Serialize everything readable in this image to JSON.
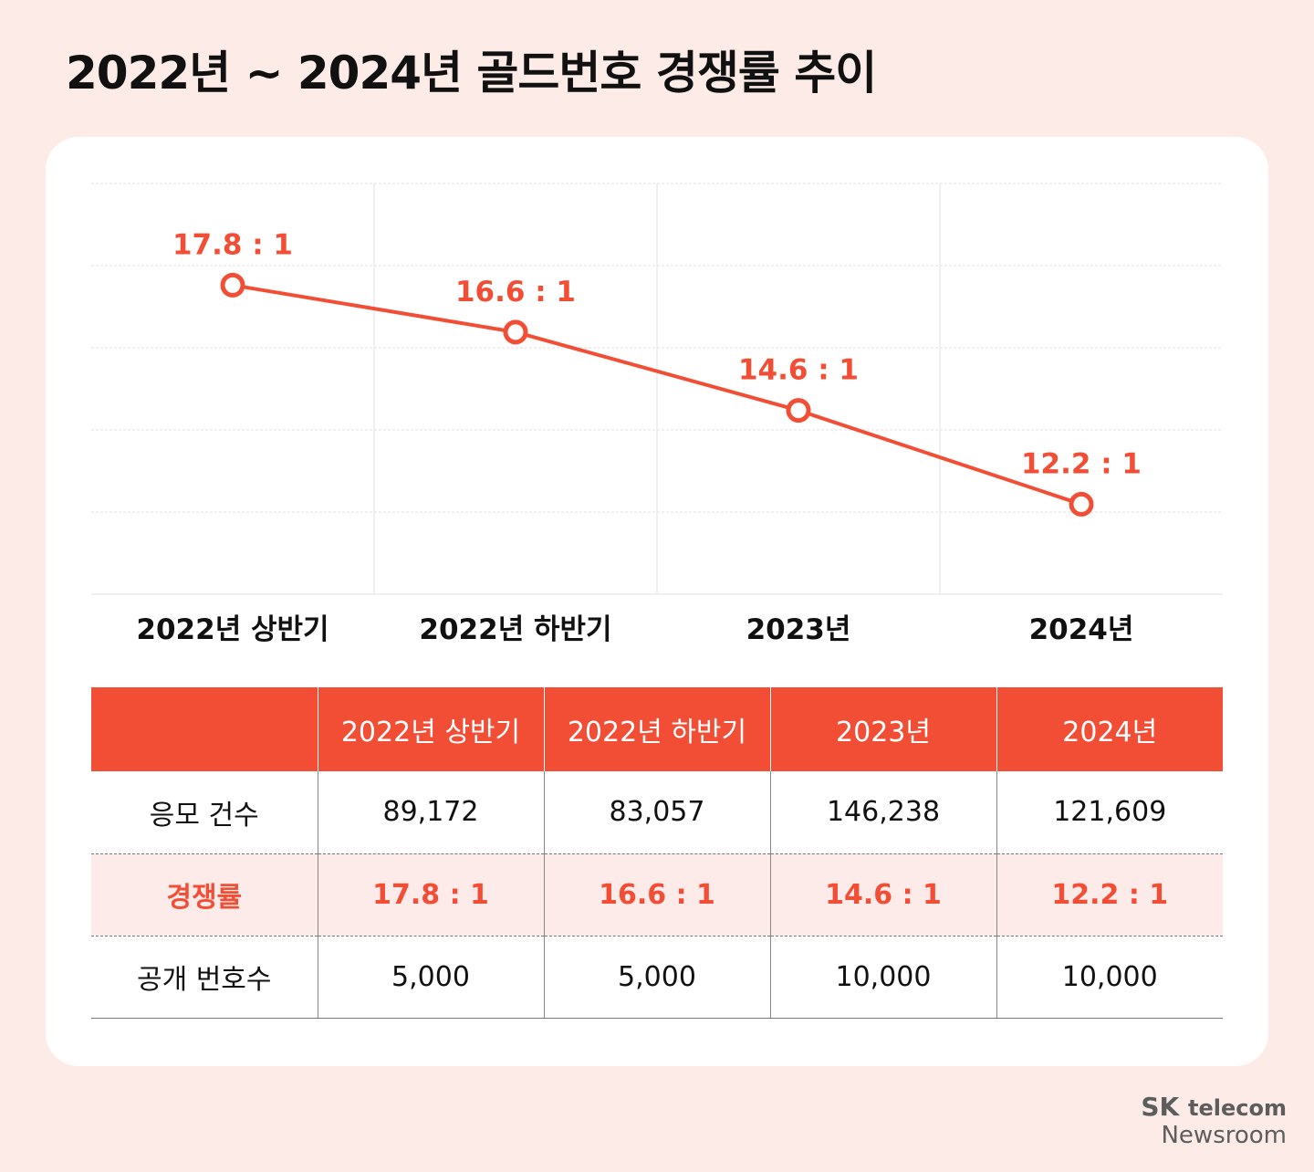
{
  "title": "2022년 ~ 2024년 골드번호 경쟁률 추이",
  "chart_data": {
    "type": "line",
    "title": "2022년 ~ 2024년 골드번호 경쟁률 추이",
    "categories": [
      "2022년 상반기",
      "2022년 하반기",
      "2023년",
      "2024년"
    ],
    "values": [
      17.8,
      16.6,
      14.6,
      12.2
    ],
    "data_labels": [
      "17.8 : 1",
      "16.6 : 1",
      "14.6 : 1",
      "12.2 : 1"
    ],
    "ylim": [
      9.9,
      20.4
    ],
    "grid": true,
    "color": "#f24e36"
  },
  "table": {
    "headers": [
      "",
      "2022년 상반기",
      "2022년 하반기",
      "2023년",
      "2024년"
    ],
    "rows": [
      [
        "응모 건수",
        "89,172",
        "83,057",
        "146,238",
        "121,609"
      ],
      [
        "경쟁률",
        "17.8 : 1",
        "16.6 : 1",
        "14.6 : 1",
        "12.2 : 1"
      ],
      [
        "공개 번호수",
        "5,000",
        "5,000",
        "10,000",
        "10,000"
      ]
    ]
  },
  "logo": {
    "brand": "SK",
    "product": "telecom",
    "sub": "Newsroom"
  }
}
